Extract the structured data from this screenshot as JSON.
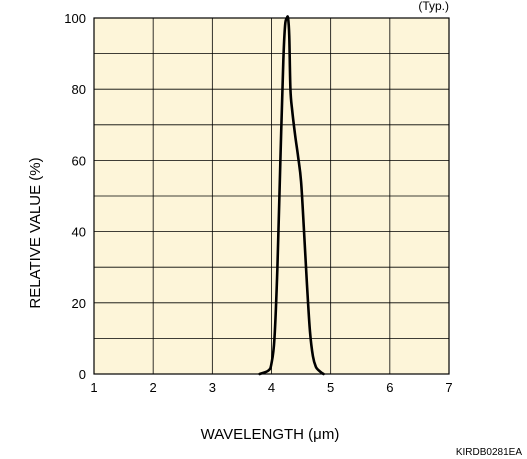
{
  "chart_data": {
    "type": "line",
    "note": "(Typ.)",
    "code": "KIRDB0281EA",
    "xlabel": "WAVELENGTH (μm)",
    "ylabel": "RELATIVE VALUE (%)",
    "xlim": [
      1,
      7
    ],
    "ylim": [
      0,
      100
    ],
    "x_ticks": [
      "1",
      "2",
      "3",
      "4",
      "5",
      "6",
      "7"
    ],
    "y_ticks": [
      "0",
      "20",
      "40",
      "60",
      "80",
      "100"
    ],
    "grid": true,
    "plot_background": "#fdf5d9",
    "grid_color": "#000000",
    "line_color": "#000000",
    "series": [
      {
        "x": [
          3.8,
          3.95,
          4.0,
          4.05,
          4.1,
          4.15,
          4.2,
          4.23,
          4.26,
          4.28,
          4.3,
          4.32,
          4.35,
          4.4,
          4.45,
          4.5,
          4.55,
          4.6,
          4.65,
          4.7,
          4.75,
          4.8,
          4.85,
          4.88
        ],
        "y": [
          0,
          1,
          3,
          10,
          30,
          60,
          88,
          98,
          100,
          100,
          95,
          80,
          74,
          67,
          61,
          54,
          40,
          25,
          12,
          5,
          2,
          1,
          0.3,
          0
        ]
      }
    ]
  }
}
